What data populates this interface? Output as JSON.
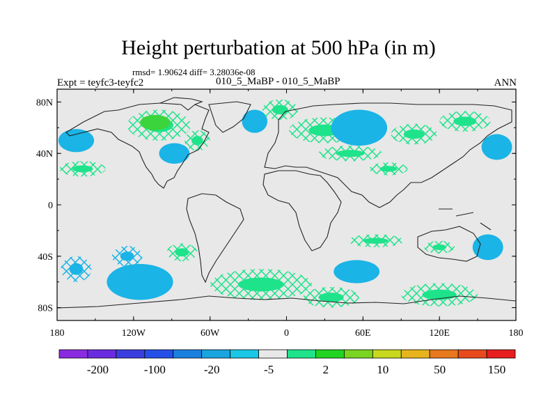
{
  "title": "Height perturbation at 500 hPa (in m)",
  "stats": "rmsd= 1.90624  diff= 3.28036e-08",
  "left_label": "Expt = teyfc3-teyfc2",
  "center_label": "010_5_MaBP - 010_5_MaBP",
  "right_label": "ANN",
  "axes": {
    "lat_ticks": [
      "80N",
      "40N",
      "0",
      "40S",
      "80S"
    ],
    "lat_values": [
      80,
      40,
      0,
      -40,
      -80
    ],
    "lon_ticks": [
      "180",
      "120W",
      "60W",
      "0",
      "60E",
      "120E",
      "180"
    ],
    "lon_values": [
      -180,
      -120,
      -60,
      0,
      60,
      120,
      180
    ]
  },
  "colorbar": {
    "colors": [
      "#8a2be2",
      "#6a2ce0",
      "#3b3fe0",
      "#2450e8",
      "#1a80e0",
      "#1aa5e0",
      "#1ac8e6",
      "#e8e8e8",
      "#1ee38a",
      "#22d422",
      "#7ad422",
      "#c8d81e",
      "#e8b41e",
      "#e8781e",
      "#e84a1e",
      "#e81e1e"
    ],
    "labels": [
      "-200",
      "-100",
      "-20",
      "-5",
      "2",
      "10",
      "50",
      "150"
    ]
  },
  "colors": {
    "neutral": "#e8e8e8",
    "blue": "#1ab4e6",
    "green": "#1ee38a",
    "lime": "#3cd43c"
  },
  "regions": [
    {
      "type": "blue",
      "lon": -165,
      "lat": 50,
      "rx": 14,
      "ry": 9
    },
    {
      "type": "green",
      "lon": -100,
      "lat": 62,
      "rx": 25,
      "ry": 12,
      "hatch": true
    },
    {
      "type": "lime",
      "lon": -103,
      "lat": 64,
      "rx": 12,
      "ry": 6
    },
    {
      "type": "blue",
      "lon": -88,
      "lat": 40,
      "rx": 12,
      "ry": 8
    },
    {
      "type": "green",
      "lon": -70,
      "lat": 50,
      "rx": 10,
      "ry": 8,
      "hatch": true
    },
    {
      "type": "green",
      "lon": -160,
      "lat": 28,
      "rx": 18,
      "ry": 6,
      "hatch": true
    },
    {
      "type": "blue",
      "lon": -25,
      "lat": 65,
      "rx": 10,
      "ry": 9
    },
    {
      "type": "green",
      "lon": -5,
      "lat": 74,
      "rx": 14,
      "ry": 8,
      "hatch": true
    },
    {
      "type": "green",
      "lon": 30,
      "lat": 58,
      "rx": 28,
      "ry": 10,
      "hatch": true
    },
    {
      "type": "green",
      "lon": 50,
      "lat": 40,
      "rx": 25,
      "ry": 6,
      "hatch": true
    },
    {
      "type": "blue",
      "lon": 57,
      "lat": 60,
      "rx": 22,
      "ry": 14
    },
    {
      "type": "green",
      "lon": 100,
      "lat": 55,
      "rx": 18,
      "ry": 8,
      "hatch": true
    },
    {
      "type": "blue",
      "lon": 165,
      "lat": 45,
      "rx": 12,
      "ry": 10
    },
    {
      "type": "green",
      "lon": 140,
      "lat": 65,
      "rx": 20,
      "ry": 8,
      "hatch": true
    },
    {
      "type": "green",
      "lon": 80,
      "lat": 28,
      "rx": 15,
      "ry": 5,
      "hatch": true
    },
    {
      "type": "blue",
      "lon": -165,
      "lat": -50,
      "rx": 12,
      "ry": 10,
      "hatch": true
    },
    {
      "type": "blue",
      "lon": -115,
      "lat": -60,
      "rx": 26,
      "ry": 14
    },
    {
      "type": "blue",
      "lon": -125,
      "lat": -40,
      "rx": 12,
      "ry": 8,
      "hatch": true
    },
    {
      "type": "green",
      "lon": -82,
      "lat": -37,
      "rx": 12,
      "ry": 7,
      "hatch": true
    },
    {
      "type": "green",
      "lon": -20,
      "lat": -62,
      "rx": 40,
      "ry": 12,
      "hatch": true
    },
    {
      "type": "blue",
      "lon": 55,
      "lat": -52,
      "rx": 18,
      "ry": 9
    },
    {
      "type": "green",
      "lon": 70,
      "lat": -28,
      "rx": 22,
      "ry": 5,
      "hatch": true
    },
    {
      "type": "green",
      "lon": 120,
      "lat": -70,
      "rx": 30,
      "ry": 9,
      "hatch": true
    },
    {
      "type": "blue",
      "lon": 158,
      "lat": -33,
      "rx": 12,
      "ry": 10
    },
    {
      "type": "green",
      "lon": 120,
      "lat": -33,
      "rx": 12,
      "ry": 5,
      "hatch": true
    },
    {
      "type": "green",
      "lon": 35,
      "lat": -72,
      "rx": 22,
      "ry": 8,
      "hatch": true
    }
  ]
}
